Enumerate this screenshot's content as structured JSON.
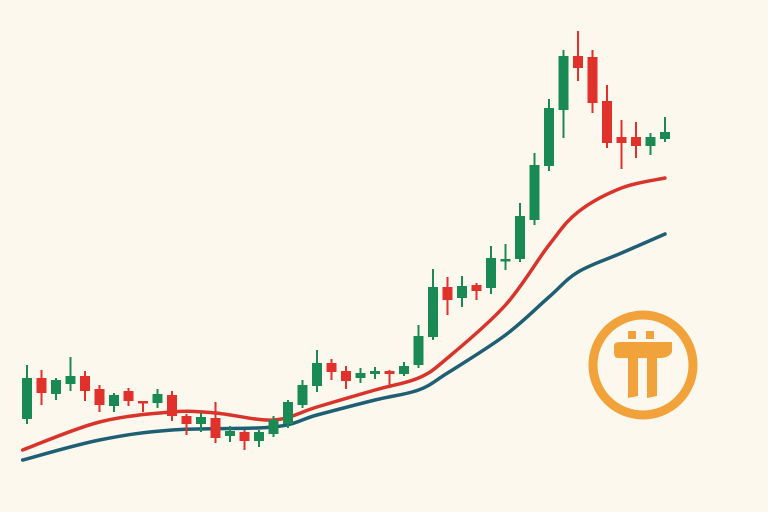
{
  "chart_data": {
    "type": "candlestick",
    "title": "",
    "xlabel": "",
    "ylabel": "",
    "grid": false,
    "ylim": [
      0,
      50
    ],
    "colors": {
      "up": "#1a8a55",
      "down": "#e0312a",
      "ma_fast": "#d9342b",
      "ma_slow": "#1f5f74",
      "background": "#fdf8ee",
      "logo": "#f2a23a"
    },
    "candles": [
      [
        8.1,
        13.5,
        7.6,
        12.2
      ],
      [
        12.2,
        13.0,
        9.5,
        10.7
      ],
      [
        10.6,
        12.2,
        10.0,
        12.0
      ],
      [
        11.6,
        14.3,
        10.9,
        12.4
      ],
      [
        12.4,
        12.9,
        9.9,
        10.9
      ],
      [
        11.1,
        11.5,
        8.8,
        9.5
      ],
      [
        9.4,
        10.7,
        8.8,
        10.5
      ],
      [
        10.9,
        11.2,
        9.4,
        9.9
      ],
      [
        9.9,
        9.9,
        8.8,
        9.7
      ],
      [
        9.7,
        11.1,
        9.2,
        10.6
      ],
      [
        10.5,
        10.9,
        7.9,
        8.4
      ],
      [
        8.4,
        8.6,
        6.5,
        7.6
      ],
      [
        7.6,
        8.7,
        6.8,
        8.3
      ],
      [
        8.2,
        9.8,
        5.7,
        6.2
      ],
      [
        6.4,
        7.4,
        5.8,
        6.9
      ],
      [
        6.8,
        7.0,
        5.0,
        5.9
      ],
      [
        5.9,
        7.0,
        5.3,
        6.8
      ],
      [
        6.6,
        8.4,
        6.3,
        8.0
      ],
      [
        7.6,
        10.0,
        7.2,
        9.8
      ],
      [
        9.5,
        12.0,
        9.2,
        11.5
      ],
      [
        11.4,
        15.0,
        10.8,
        13.7
      ],
      [
        13.7,
        14.1,
        12.0,
        12.8
      ],
      [
        12.9,
        13.4,
        11.1,
        11.9
      ],
      [
        12.2,
        13.2,
        11.7,
        12.7
      ],
      [
        12.6,
        13.3,
        12.1,
        12.9
      ],
      [
        12.9,
        13.0,
        11.4,
        12.6
      ],
      [
        12.6,
        13.8,
        12.4,
        13.4
      ],
      [
        13.5,
        17.5,
        13.2,
        16.4
      ],
      [
        16.3,
        23.1,
        16.0,
        21.3
      ],
      [
        21.3,
        22.3,
        18.5,
        20.0
      ],
      [
        20.2,
        22.4,
        19.3,
        21.4
      ],
      [
        21.5,
        21.7,
        20.0,
        20.9
      ],
      [
        21.2,
        25.4,
        20.6,
        24.2
      ],
      [
        23.9,
        25.6,
        23.0,
        24.1
      ],
      [
        24.1,
        29.7,
        23.8,
        28.4
      ],
      [
        28.0,
        34.7,
        27.5,
        33.5
      ],
      [
        33.4,
        40.1,
        32.9,
        39.2
      ],
      [
        39.0,
        45.0,
        36.2,
        44.4
      ],
      [
        44.4,
        46.9,
        41.9,
        43.2
      ],
      [
        44.3,
        45.0,
        38.7,
        39.7
      ],
      [
        39.9,
        41.5,
        35.2,
        35.7
      ],
      [
        36.3,
        38.0,
        33.1,
        35.7
      ],
      [
        36.3,
        37.8,
        34.2,
        35.4
      ],
      [
        35.4,
        36.7,
        34.5,
        36.3
      ],
      [
        36.1,
        38.3,
        35.8,
        36.8
      ]
    ],
    "candle_fields": [
      "open",
      "high",
      "low",
      "close"
    ],
    "series": [
      {
        "values": [
          [
            -0.3,
            5.0
          ],
          [
            5,
            7.8
          ],
          [
            10,
            8.8
          ],
          [
            13,
            8.7
          ],
          [
            17,
            8.0
          ],
          [
            20,
            9.3
          ],
          [
            24,
            11.0
          ],
          [
            27,
            12.2
          ],
          [
            29,
            14.2
          ],
          [
            33,
            19.5
          ],
          [
            36,
            25.5
          ],
          [
            38,
            28.8
          ],
          [
            41,
            31.2
          ],
          [
            44,
            32.2
          ]
        ]
      },
      {
        "values": [
          [
            -0.3,
            4.0
          ],
          [
            5,
            6.0
          ],
          [
            10,
            7.0
          ],
          [
            17,
            7.3
          ],
          [
            20,
            8.5
          ],
          [
            24,
            10.0
          ],
          [
            27,
            11.0
          ],
          [
            29,
            12.7
          ],
          [
            33,
            16.5
          ],
          [
            36,
            20.3
          ],
          [
            38,
            22.8
          ],
          [
            41,
            24.7
          ],
          [
            44,
            26.6
          ]
        ]
      }
    ],
    "logo": "pi-network-logo"
  }
}
